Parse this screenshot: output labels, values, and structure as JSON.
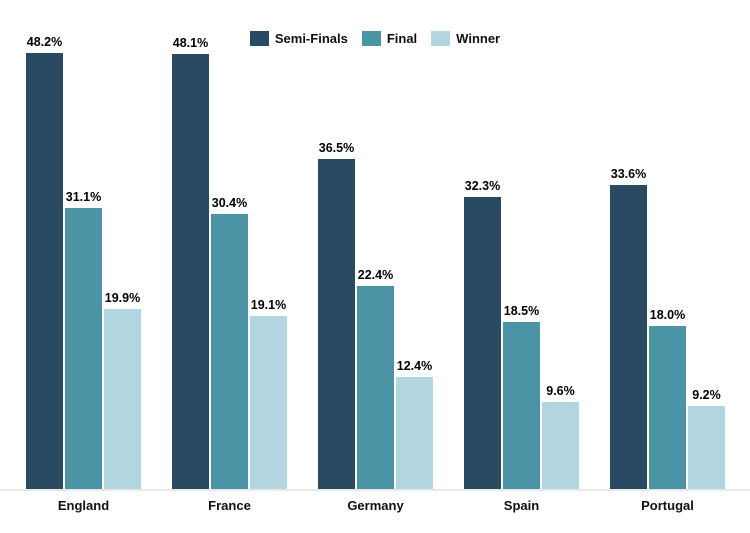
{
  "chart_data": {
    "type": "bar",
    "title": "",
    "categories": [
      "England",
      "France",
      "Germany",
      "Spain",
      "Portugal"
    ],
    "series": [
      {
        "name": "Semi-Finals",
        "color": "#294a62",
        "values": [
          48.2,
          48.1,
          36.5,
          32.3,
          33.6
        ]
      },
      {
        "name": "Final",
        "color": "#4a94a6",
        "values": [
          31.1,
          30.4,
          22.4,
          18.5,
          18.0
        ]
      },
      {
        "name": "Winner",
        "color": "#b3d7e0",
        "values": [
          19.9,
          19.1,
          12.4,
          9.6,
          9.2
        ]
      }
    ],
    "value_suffix": "%",
    "value_decimals": 1,
    "data_labels": true,
    "ylim": [
      0,
      50
    ],
    "grid": false,
    "y_axis_visible": false,
    "legend_position": "top-center",
    "axis_line_color": "#e9e9e9",
    "label_color": "#000000",
    "background_color": "#ffffff"
  }
}
